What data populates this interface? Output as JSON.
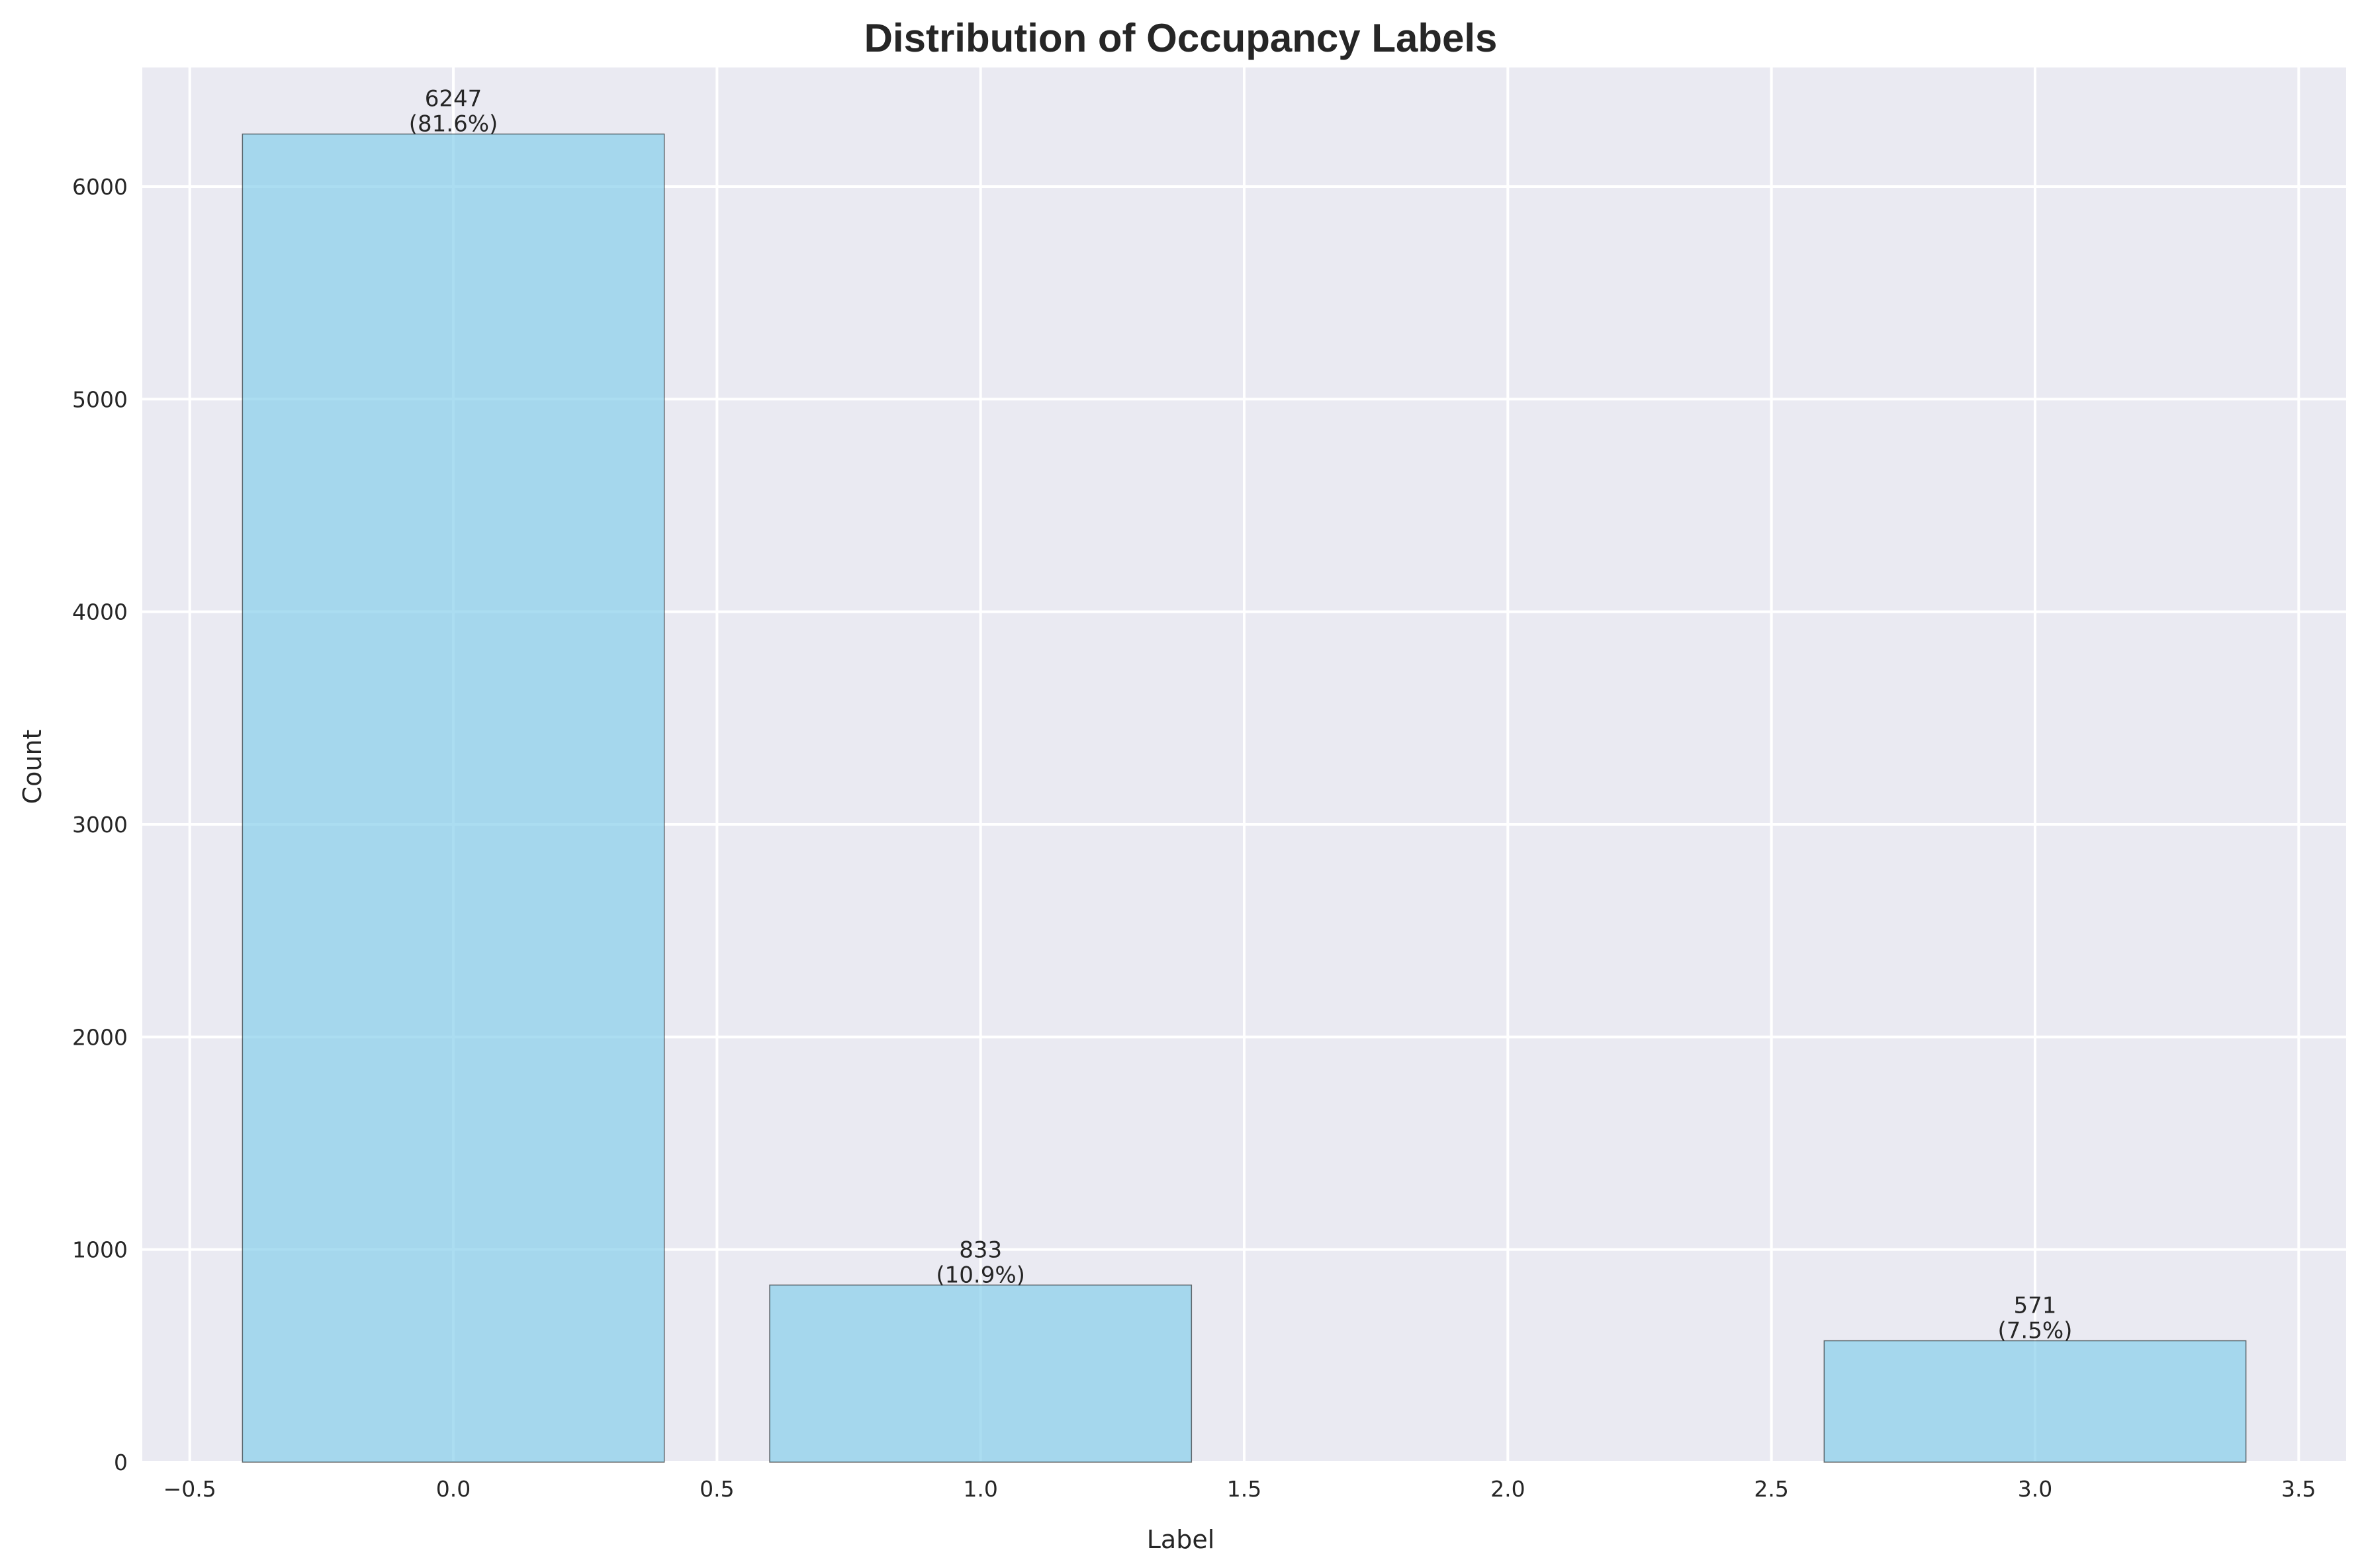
{
  "chart_data": {
    "type": "bar",
    "title": "Distribution of Occupancy Labels",
    "xlabel": "Label",
    "ylabel": "Count",
    "x": [
      0,
      1,
      3
    ],
    "values": [
      6247,
      833,
      571
    ],
    "value_labels": [
      "6247",
      "833",
      "571"
    ],
    "percent_labels": [
      "(81.6%)",
      "(10.9%)",
      "(7.5%)"
    ],
    "bar_width": 0.8,
    "xlim": [
      -0.59,
      3.59
    ],
    "ylim": [
      0,
      6560
    ],
    "xticks": [
      -0.5,
      0.0,
      0.5,
      1.0,
      1.5,
      2.0,
      2.5,
      3.0,
      3.5
    ],
    "xtick_labels": [
      "−0.5",
      "0.0",
      "0.5",
      "1.0",
      "1.5",
      "2.0",
      "2.5",
      "3.0",
      "3.5"
    ],
    "yticks": [
      0,
      1000,
      2000,
      3000,
      4000,
      5000,
      6000
    ],
    "ytick_labels": [
      "0",
      "1000",
      "2000",
      "3000",
      "4000",
      "5000",
      "6000"
    ],
    "grid": true,
    "colors": {
      "bar_fill": "#87CEEB",
      "bar_edge": "#000000",
      "plot_background": "#EAEAF2",
      "grid": "#FFFFFF",
      "text": "#262626"
    }
  }
}
